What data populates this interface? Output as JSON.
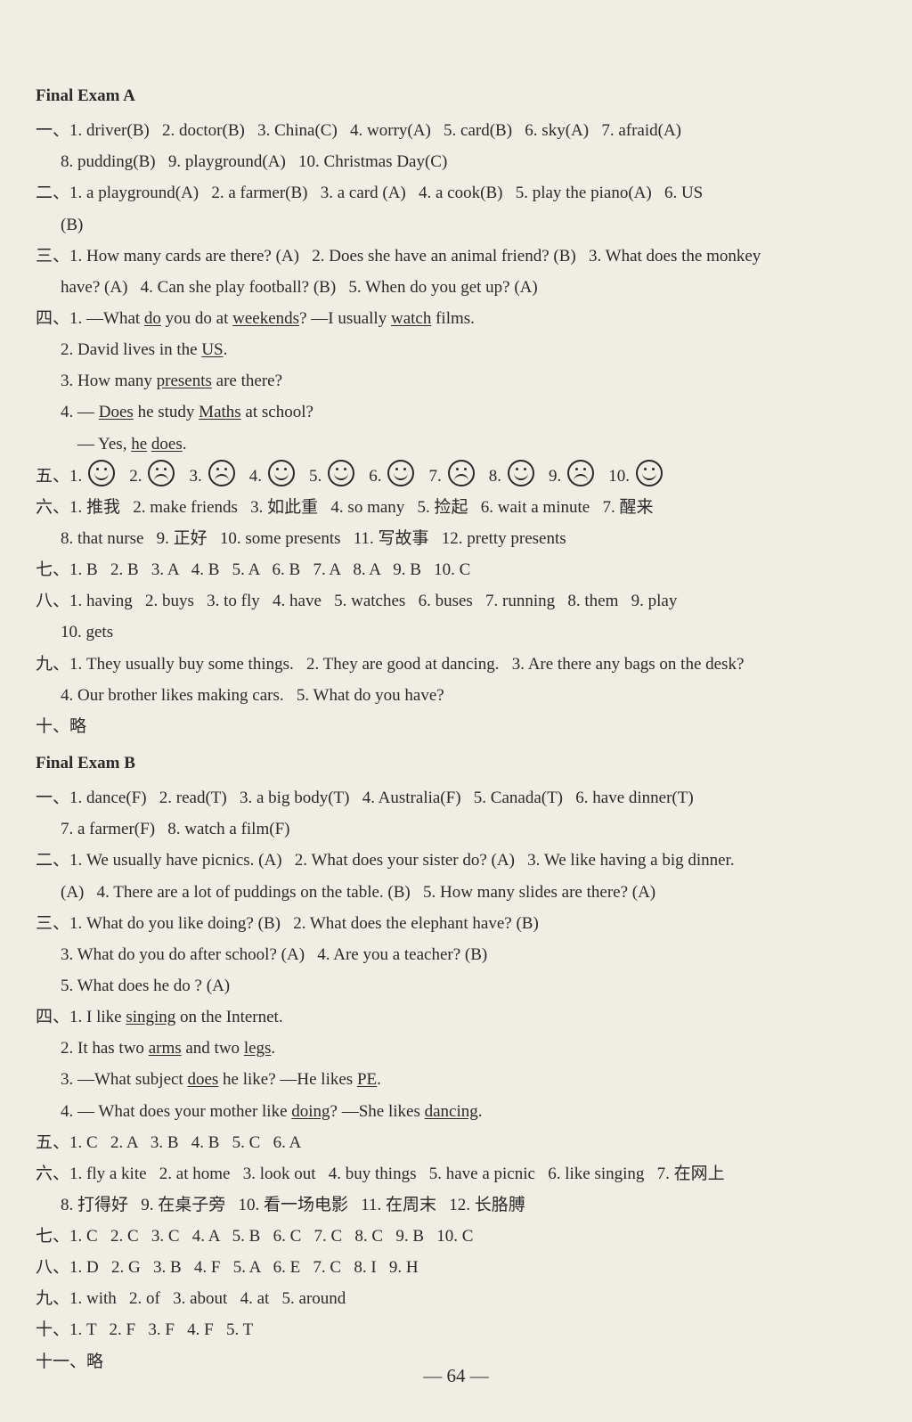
{
  "page_number": "— 64 —",
  "examA": {
    "title": "Final Exam A",
    "sec1": {
      "label": "一、",
      "line1": "1. driver(B)   2. doctor(B)   3. China(C)   4. worry(A)   5. card(B)   6. sky(A)   7. afraid(A)",
      "line2": "8. pudding(B)   9. playground(A)   10. Christmas Day(C)"
    },
    "sec2": {
      "label": "二、",
      "line1": "1. a playground(A)   2. a farmer(B)   3. a card (A)   4. a cook(B)   5. play the piano(A)   6. US",
      "line2": "(B)"
    },
    "sec3": {
      "label": "三、",
      "line1": "1. How many cards are there? (A)   2. Does she have an animal friend? (B)   3. What does the monkey",
      "line2": "have? (A)   4. Can she play football? (B)   5. When do you get up? (A)"
    },
    "sec4": {
      "label": "四、",
      "q1_pre": "1. —What ",
      "q1_u1": "do",
      "q1_mid1": " you do at ",
      "q1_u2": "weekends",
      "q1_mid2": "? —I usually ",
      "q1_u3": "watch",
      "q1_post": " films.",
      "q2_pre": "2. David lives in the ",
      "q2_u1": "US",
      "q2_post": ".",
      "q3_pre": "3. How many ",
      "q3_u1": "presents",
      "q3_post": " are there?",
      "q4_pre": "4. — ",
      "q4_u1": "Does",
      "q4_mid": " he study ",
      "q4_u2": "Maths",
      "q4_post": " at school?",
      "q4b_pre": "    — Yes, ",
      "q4b_u1": "he",
      "q4b_mid": " ",
      "q4b_u2": "does",
      "q4b_post": "."
    },
    "sec5": {
      "label": "五、",
      "nums": [
        "1.",
        "2.",
        "3.",
        "4.",
        "5.",
        "6.",
        "7.",
        "8.",
        "9.",
        "10."
      ],
      "faces": [
        "smile",
        "sad",
        "sad",
        "smile",
        "smile",
        "smile",
        "sad",
        "smile",
        "sad",
        "smile"
      ]
    },
    "sec6": {
      "label": "六、",
      "line1": "1. 推我   2. make friends   3. 如此重   4. so many   5. 捡起   6. wait a minute   7. 醒来",
      "line2": "8. that nurse   9. 正好   10. some presents   11. 写故事   12. pretty presents"
    },
    "sec7": {
      "label": "七、",
      "line": "1. B   2. B   3. A   4. B   5. A   6. B   7. A   8. A   9. B   10. C"
    },
    "sec8": {
      "label": "八、",
      "line1": "1. having   2. buys   3. to fly   4. have   5. watches   6. buses   7. running   8. them   9. play",
      "line2": "10. gets"
    },
    "sec9": {
      "label": "九、",
      "line1": "1. They usually buy some things.   2. They are good at dancing.   3. Are there any bags on the desk?",
      "line2": "4. Our brother likes making cars.   5. What do you have?"
    },
    "sec10": {
      "text": "十、略"
    }
  },
  "examB": {
    "title": "Final Exam B",
    "sec1": {
      "label": "一、",
      "line1": "1. dance(F)   2. read(T)   3. a big body(T)   4. Australia(F)   5. Canada(T)   6. have dinner(T)",
      "line2": "7. a farmer(F)   8. watch a film(F)"
    },
    "sec2": {
      "label": "二、",
      "line1": "1. We usually have picnics. (A)   2. What does your sister do? (A)   3. We like having a big dinner.",
      "line2": "(A)   4. There are a lot of puddings on the table. (B)   5. How many slides are there? (A)"
    },
    "sec3": {
      "label": "三、",
      "line1": "1. What do you like doing? (B)   2. What does the elephant have? (B)",
      "line2": "3. What do you do after school? (A)   4. Are you a teacher? (B)",
      "line3": "5. What does he do ? (A)"
    },
    "sec4": {
      "label": "四、",
      "q1_pre": "1. I like ",
      "q1_u1": "singing",
      "q1_post": " on the Internet.",
      "q2_pre": "2. It has two ",
      "q2_u1": "arms",
      "q2_mid": " and two ",
      "q2_u2": "legs",
      "q2_post": ".",
      "q3_pre": "3. —What subject ",
      "q3_u1": "does",
      "q3_mid": " he like? —He likes ",
      "q3_u2": "PE",
      "q3_post": ".",
      "q4_pre": "4. — What does your mother like ",
      "q4_u1": "doing",
      "q4_mid": "? —She likes ",
      "q4_u2": "dancing",
      "q4_post": "."
    },
    "sec5": {
      "label": "五、",
      "line": "1. C   2. A   3. B   4. B   5. C   6. A"
    },
    "sec6": {
      "label": "六、",
      "line1": "1. fly a kite   2. at home   3. look out   4. buy things   5. have a picnic   6. like singing   7. 在网上",
      "line2": "8. 打得好   9. 在桌子旁   10. 看一场电影   11. 在周末   12. 长胳膊"
    },
    "sec7": {
      "label": "七、",
      "line": "1. C   2. C   3. C   4. A   5. B   6. C   7. C   8. C   9. B   10. C"
    },
    "sec8": {
      "label": "八、",
      "line": "1. D   2. G   3. B   4. F   5. A   6. E   7. C   8. I   9. H"
    },
    "sec9": {
      "label": "九、",
      "line": "1. with   2. of   3. about   4. at   5. around"
    },
    "sec10": {
      "label": "十、",
      "line": "1. T   2. F   3. F   4. F   5. T"
    },
    "sec11": {
      "text": "十一、略"
    }
  }
}
